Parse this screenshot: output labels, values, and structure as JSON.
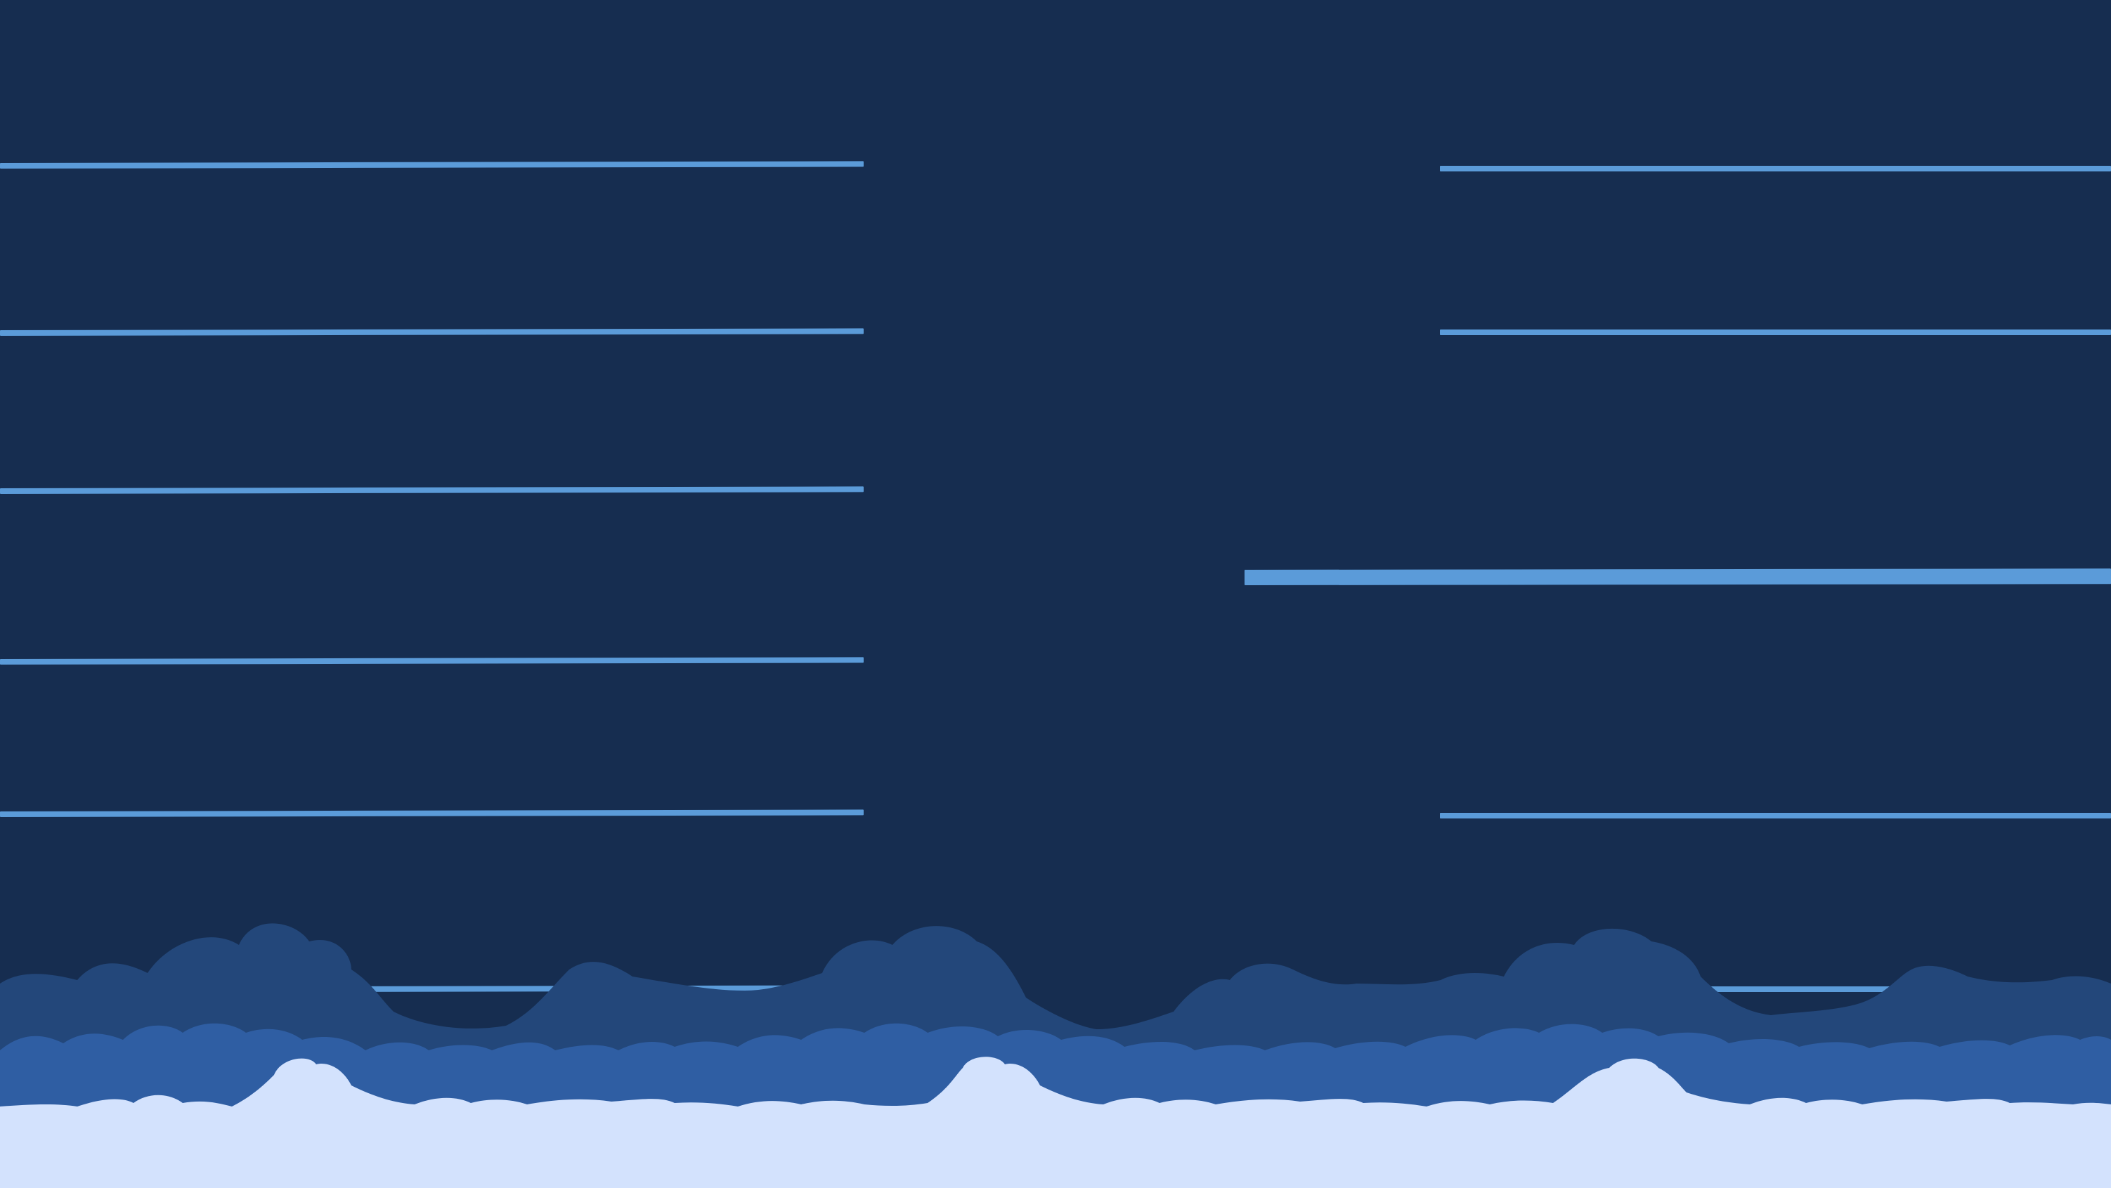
{
  "game": {
    "colors": {
      "sky": "#162d50",
      "platform": "#5b9bd9",
      "cloud_back": "#23477a",
      "cloud_mid": "#2f5ea3",
      "cloud_front": "#d3e2fd"
    },
    "platforms": {
      "left_column_count": 6,
      "right_column_count": 5
    }
  }
}
